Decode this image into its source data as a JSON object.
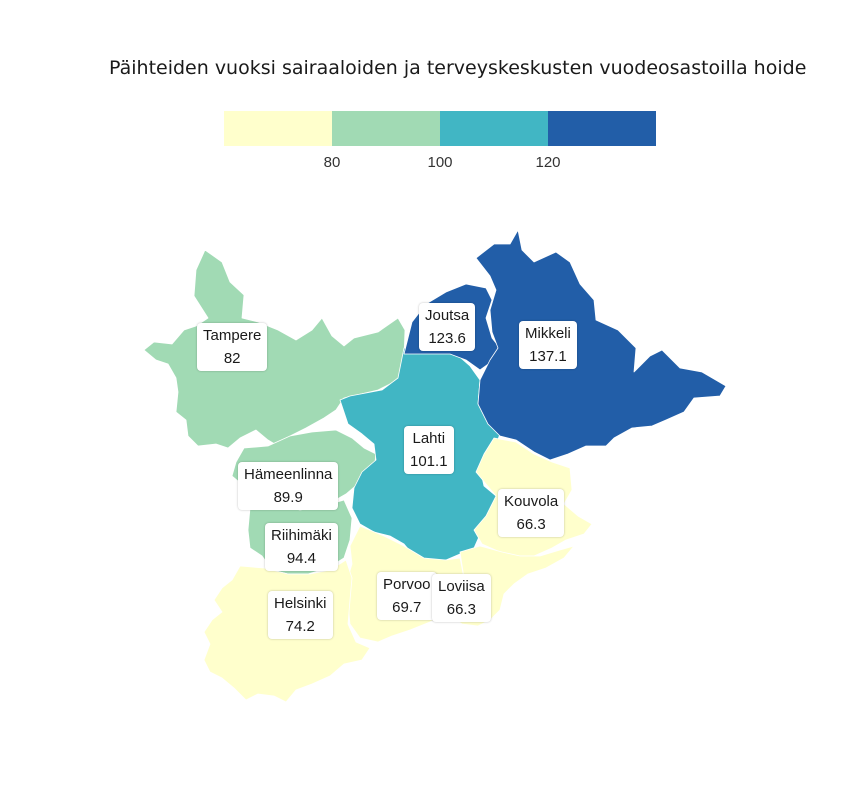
{
  "title": "Päihteiden vuoksi sairaaloiden ja terveyskeskusten vuodeosastoilla hoide",
  "legend": {
    "colors": [
      "#ffffcc",
      "#a1dab4",
      "#41b6c4",
      "#225ea8"
    ],
    "ticks": [
      "80",
      "100",
      "120"
    ]
  },
  "regions": [
    {
      "name": "Tampere",
      "value": "82"
    },
    {
      "name": "Joutsa",
      "value": "123.6"
    },
    {
      "name": "Mikkeli",
      "value": "137.1"
    },
    {
      "name": "Lahti",
      "value": "101.1"
    },
    {
      "name": "Hämeenlinna",
      "value": "89.9"
    },
    {
      "name": "Kouvola",
      "value": "66.3"
    },
    {
      "name": "Riihimäki",
      "value": "94.4"
    },
    {
      "name": "Porvoo",
      "value": "69.7"
    },
    {
      "name": "Loviisa",
      "value": "66.3"
    },
    {
      "name": "Helsinki",
      "value": "74.2"
    }
  ]
}
